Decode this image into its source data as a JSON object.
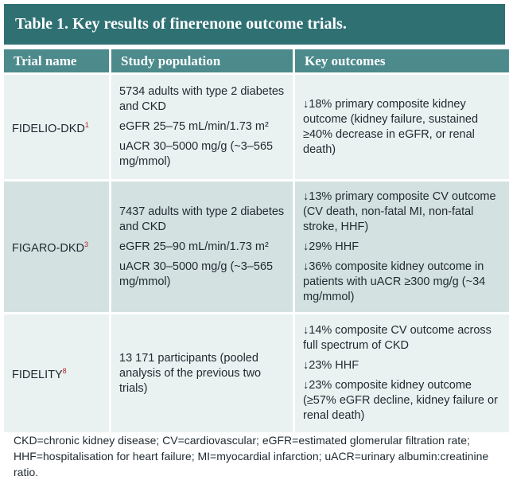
{
  "table": {
    "title": "Table 1. Key results of finerenone outcome trials.",
    "headers": [
      "Trial name",
      "Study population",
      "Key outcomes"
    ],
    "rows": [
      {
        "name": "FIDELIO-DKD",
        "ref": "1",
        "population": [
          "5734 adults with type 2 diabetes and CKD",
          "eGFR 25–75 mL/min/1.73 m²",
          "uACR 30–5000 mg/g (~3–565 mg/mmol)"
        ],
        "outcomes": [
          "↓18% primary composite kidney outcome (kidney failure, sustained ≥40% decrease in eGFR, or renal death)"
        ]
      },
      {
        "name": "FIGARO-DKD",
        "ref": "3",
        "population": [
          "7437 adults with type 2 diabetes and CKD",
          "eGFR 25–90 mL/min/1.73 m²",
          "uACR 30–5000 mg/g (~3–565 mg/mmol)"
        ],
        "outcomes": [
          "↓13% primary composite CV outcome (CV death, non-fatal MI, non-fatal stroke, HHF)",
          "↓29% HHF",
          "↓36% composite kidney outcome in patients with uACR ≥300 mg/g (~34 mg/mmol)"
        ]
      },
      {
        "name": "FIDELITY",
        "ref": "8",
        "population": [
          "13 171 participants (pooled analysis of the previous two trials)"
        ],
        "outcomes": [
          "↓14% composite CV outcome across full spectrum of CKD",
          "↓23% HHF",
          "↓23% composite kidney outcome (≥57% eGFR decline, kidney failure or renal death)"
        ]
      }
    ],
    "footnote": "CKD=chronic kidney disease; CV=cardiovascular; eGFR=estimated glomerular filtration rate; HHF=hospitalisation for heart failure; MI=myocardial infarction; uACR=urinary albumin:creatinine ratio."
  },
  "colors": {
    "title_bg": "#2f7073",
    "header_bg": "#4c8a8c",
    "row_light": "#eaf1f1",
    "row_dark": "#d4e1e1",
    "ref_marker": "#b3262a"
  }
}
